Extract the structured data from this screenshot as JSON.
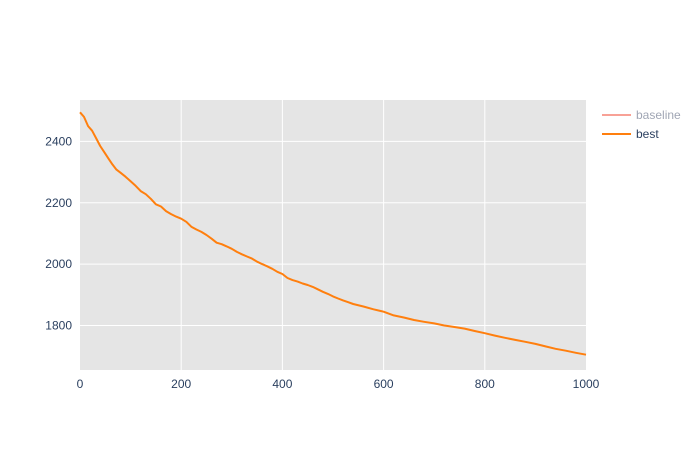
{
  "chart_data": {
    "type": "line",
    "title": "",
    "xlabel": "",
    "ylabel": "",
    "xlim": [
      0,
      1000
    ],
    "ylim": [
      1655,
      2535
    ],
    "xticks": [
      0,
      200,
      400,
      600,
      800,
      1000
    ],
    "yticks": [
      1800,
      2000,
      2200,
      2400
    ],
    "grid": true,
    "legend_position": "top-right, outside plot",
    "series": [
      {
        "name": "baseline",
        "color": "#f8a196",
        "legend_only": true,
        "x": [],
        "y": []
      },
      {
        "name": "best",
        "color": "#ff7f0e",
        "x": [
          0,
          8,
          16,
          24,
          32,
          40,
          48,
          56,
          64,
          72,
          80,
          90,
          100,
          110,
          120,
          130,
          140,
          150,
          160,
          170,
          180,
          190,
          200,
          210,
          220,
          230,
          240,
          250,
          260,
          270,
          280,
          290,
          300,
          310,
          320,
          330,
          340,
          350,
          360,
          370,
          380,
          390,
          400,
          410,
          420,
          430,
          440,
          450,
          460,
          470,
          480,
          490,
          500,
          510,
          520,
          530,
          540,
          560,
          580,
          600,
          620,
          640,
          660,
          680,
          700,
          720,
          740,
          760,
          780,
          800,
          820,
          840,
          860,
          880,
          900,
          920,
          940,
          960,
          980,
          1000
        ],
        "y": [
          2495,
          2480,
          2450,
          2435,
          2410,
          2385,
          2365,
          2345,
          2325,
          2308,
          2298,
          2285,
          2270,
          2255,
          2238,
          2228,
          2213,
          2195,
          2188,
          2173,
          2163,
          2155,
          2148,
          2138,
          2122,
          2113,
          2105,
          2095,
          2083,
          2070,
          2065,
          2058,
          2050,
          2040,
          2032,
          2025,
          2018,
          2008,
          2000,
          1993,
          1985,
          1975,
          1968,
          1955,
          1948,
          1943,
          1937,
          1932,
          1926,
          1918,
          1910,
          1903,
          1895,
          1888,
          1882,
          1876,
          1870,
          1862,
          1853,
          1845,
          1833,
          1826,
          1818,
          1812,
          1807,
          1800,
          1795,
          1790,
          1782,
          1775,
          1767,
          1760,
          1753,
          1747,
          1740,
          1732,
          1724,
          1718,
          1711,
          1705
        ]
      }
    ]
  }
}
